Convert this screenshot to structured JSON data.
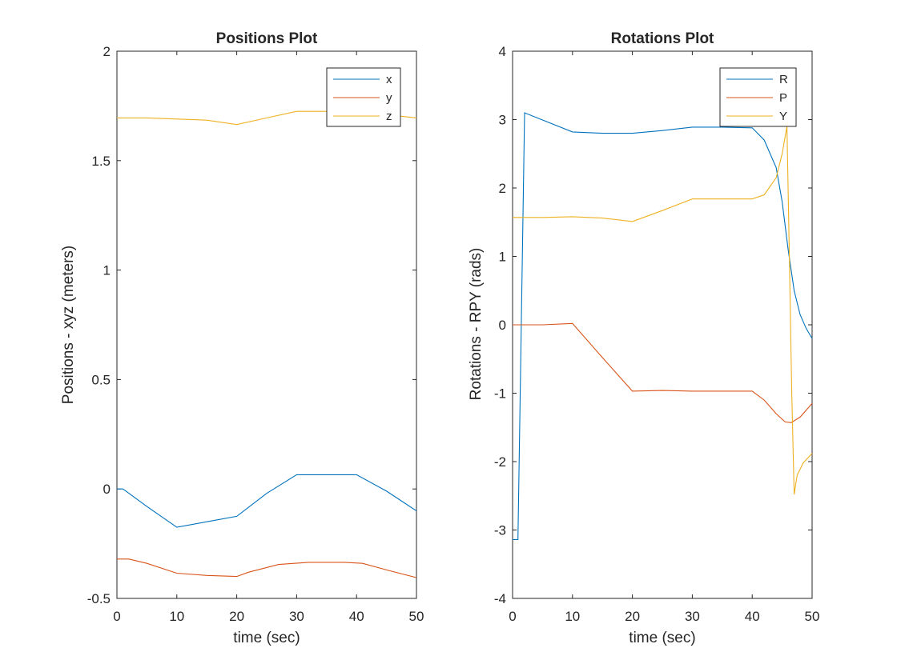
{
  "chart_data": [
    {
      "type": "line",
      "title": "Positions Plot",
      "xlabel": "time (sec)",
      "ylabel": "Positions - xyz (meters)",
      "xlim": [
        0,
        50
      ],
      "ylim": [
        -0.5,
        2
      ],
      "xticks": [
        "0",
        "10",
        "20",
        "30",
        "40",
        "50"
      ],
      "yticks": [
        "-0.5",
        "0",
        "0.5",
        "1",
        "1.5",
        "2"
      ],
      "grid": false,
      "legend_position": "top-right",
      "series": [
        {
          "name": "x",
          "color": "#0072BD",
          "points": [
            [
              0,
              0.0
            ],
            [
              1,
              0.0
            ],
            [
              5,
              -0.08
            ],
            [
              10,
              -0.175
            ],
            [
              15,
              -0.15
            ],
            [
              20,
              -0.125
            ],
            [
              25,
              -0.02
            ],
            [
              30,
              0.065
            ],
            [
              35,
              0.065
            ],
            [
              40,
              0.065
            ],
            [
              45,
              -0.01
            ],
            [
              50,
              -0.1
            ]
          ]
        },
        {
          "name": "y",
          "color": "#D95319",
          "points": [
            [
              0,
              -0.32
            ],
            [
              2,
              -0.32
            ],
            [
              5,
              -0.34
            ],
            [
              10,
              -0.385
            ],
            [
              15,
              -0.395
            ],
            [
              20,
              -0.4
            ],
            [
              22,
              -0.38
            ],
            [
              27,
              -0.345
            ],
            [
              32,
              -0.335
            ],
            [
              38,
              -0.335
            ],
            [
              41,
              -0.34
            ],
            [
              45,
              -0.37
            ],
            [
              50,
              -0.405
            ]
          ]
        },
        {
          "name": "z",
          "color": "#EDB120",
          "points": [
            [
              0,
              1.695
            ],
            [
              5,
              1.695
            ],
            [
              10,
              1.69
            ],
            [
              15,
              1.685
            ],
            [
              20,
              1.665
            ],
            [
              25,
              1.695
            ],
            [
              30,
              1.725
            ],
            [
              40,
              1.725
            ],
            [
              45,
              1.71
            ],
            [
              50,
              1.695
            ]
          ]
        }
      ]
    },
    {
      "type": "line",
      "title": "Rotations Plot",
      "xlabel": "time (sec)",
      "ylabel": "Rotations - RPY (rads)",
      "xlim": [
        0,
        50
      ],
      "ylim": [
        -4,
        4
      ],
      "xticks": [
        "0",
        "10",
        "20",
        "30",
        "40",
        "50"
      ],
      "yticks": [
        "-4",
        "-3",
        "-2",
        "-1",
        "0",
        "1",
        "2",
        "3",
        "4"
      ],
      "grid": false,
      "legend_position": "top-right",
      "series": [
        {
          "name": "R",
          "color": "#0072BD",
          "points": [
            [
              0,
              -3.14
            ],
            [
              0.9,
              -3.14
            ],
            [
              2,
              3.1
            ],
            [
              10,
              2.82
            ],
            [
              15,
              2.8
            ],
            [
              20,
              2.8
            ],
            [
              25,
              2.84
            ],
            [
              30,
              2.89
            ],
            [
              35,
              2.89
            ],
            [
              40,
              2.88
            ],
            [
              42,
              2.7
            ],
            [
              44,
              2.3
            ],
            [
              45,
              1.8
            ],
            [
              46,
              1.1
            ],
            [
              47,
              0.5
            ],
            [
              48,
              0.15
            ],
            [
              49,
              -0.05
            ],
            [
              50,
              -0.2
            ]
          ]
        },
        {
          "name": "P",
          "color": "#D95319",
          "points": [
            [
              0,
              0.0
            ],
            [
              5,
              0.0
            ],
            [
              10,
              0.02
            ],
            [
              15,
              -0.48
            ],
            [
              20,
              -0.97
            ],
            [
              25,
              -0.96
            ],
            [
              30,
              -0.97
            ],
            [
              35,
              -0.97
            ],
            [
              40,
              -0.97
            ],
            [
              42,
              -1.1
            ],
            [
              44,
              -1.3
            ],
            [
              45.5,
              -1.42
            ],
            [
              46.5,
              -1.43
            ],
            [
              48,
              -1.35
            ],
            [
              50,
              -1.15
            ]
          ]
        },
        {
          "name": "Y",
          "color": "#EDB120",
          "points": [
            [
              0,
              1.57
            ],
            [
              5,
              1.57
            ],
            [
              10,
              1.58
            ],
            [
              15,
              1.56
            ],
            [
              20,
              1.51
            ],
            [
              25,
              1.67
            ],
            [
              30,
              1.84
            ],
            [
              35,
              1.84
            ],
            [
              40,
              1.84
            ],
            [
              42,
              1.9
            ],
            [
              44,
              2.15
            ],
            [
              45,
              2.5
            ],
            [
              45.8,
              2.9
            ],
            [
              46.2,
              1.0
            ],
            [
              46.6,
              -1.0
            ],
            [
              47,
              -2.48
            ],
            [
              47.5,
              -2.2
            ],
            [
              48.5,
              -2.02
            ],
            [
              50,
              -1.88
            ]
          ]
        }
      ]
    }
  ]
}
